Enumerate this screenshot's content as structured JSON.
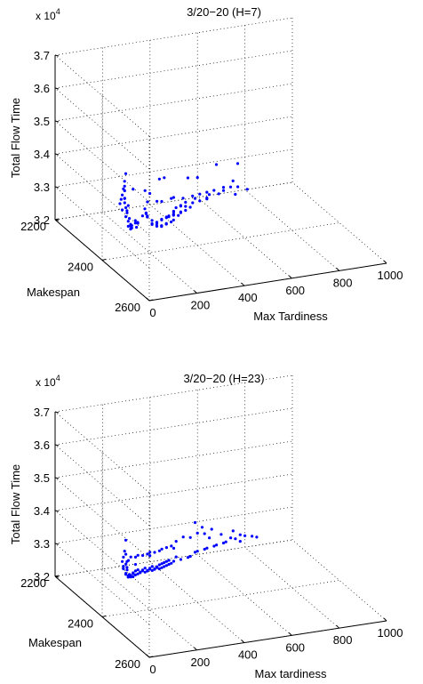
{
  "chart_data": [
    {
      "type": "scatter3d",
      "title": "3/20−20 (H=7)",
      "exponent_label": "x 10",
      "exponent_power": "4",
      "xlabel": "Max Tardiness",
      "ylabel": "Makespan",
      "zlabel": "Total Flow Time",
      "xlim": [
        0,
        1000
      ],
      "ylim": [
        2200,
        2600
      ],
      "zlim": [
        32000,
        37000
      ],
      "x_ticks": [
        "0",
        "200",
        "400",
        "600",
        "800",
        "1000"
      ],
      "y_ticks": [
        "2200",
        "2400",
        "2600"
      ],
      "z_ticks": [
        "3.2",
        "3.3",
        "3.4",
        "3.5",
        "3.6",
        "3.7"
      ],
      "grid": true,
      "marker_color": "#0000ff",
      "points": [
        {
          "x": 20,
          "y": 2480,
          "z": 35100
        },
        {
          "x": 25,
          "y": 2470,
          "z": 34800
        },
        {
          "x": 30,
          "y": 2460,
          "z": 34500
        },
        {
          "x": 35,
          "y": 2450,
          "z": 34250
        },
        {
          "x": 40,
          "y": 2440,
          "z": 34050
        },
        {
          "x": 45,
          "y": 2430,
          "z": 33850
        },
        {
          "x": 55,
          "y": 2430,
          "z": 33650
        },
        {
          "x": 60,
          "y": 2440,
          "z": 33500
        },
        {
          "x": 70,
          "y": 2440,
          "z": 33350
        },
        {
          "x": 75,
          "y": 2450,
          "z": 33200
        },
        {
          "x": 80,
          "y": 2440,
          "z": 33100
        },
        {
          "x": 90,
          "y": 2420,
          "z": 33050
        },
        {
          "x": 25,
          "y": 2470,
          "z": 34650
        },
        {
          "x": 35,
          "y": 2460,
          "z": 34200
        },
        {
          "x": 45,
          "y": 2450,
          "z": 34000
        },
        {
          "x": 55,
          "y": 2450,
          "z": 33750
        },
        {
          "x": 65,
          "y": 2450,
          "z": 33500
        },
        {
          "x": 85,
          "y": 2440,
          "z": 33200
        },
        {
          "x": 100,
          "y": 2420,
          "z": 33100
        },
        {
          "x": 110,
          "y": 2410,
          "z": 33000
        },
        {
          "x": 120,
          "y": 2400,
          "z": 32900
        },
        {
          "x": 130,
          "y": 2390,
          "z": 32850
        },
        {
          "x": 95,
          "y": 2450,
          "z": 33200
        },
        {
          "x": 40,
          "y": 2455,
          "z": 34400
        },
        {
          "x": 50,
          "y": 2445,
          "z": 34100
        },
        {
          "x": 60,
          "y": 2450,
          "z": 33900
        },
        {
          "x": 70,
          "y": 2430,
          "z": 33700
        },
        {
          "x": 80,
          "y": 2425,
          "z": 33500
        },
        {
          "x": 105,
          "y": 2435,
          "z": 33300
        },
        {
          "x": 115,
          "y": 2425,
          "z": 33150
        },
        {
          "x": 140,
          "y": 2410,
          "z": 33050
        },
        {
          "x": 150,
          "y": 2400,
          "z": 32950
        },
        {
          "x": 160,
          "y": 2420,
          "z": 33500
        },
        {
          "x": 175,
          "y": 2410,
          "z": 33300
        },
        {
          "x": 185,
          "y": 2400,
          "z": 33200
        },
        {
          "x": 200,
          "y": 2390,
          "z": 33050
        },
        {
          "x": 210,
          "y": 2380,
          "z": 32950
        },
        {
          "x": 220,
          "y": 2390,
          "z": 32800
        },
        {
          "x": 230,
          "y": 2380,
          "z": 32700
        },
        {
          "x": 240,
          "y": 2370,
          "z": 32750
        },
        {
          "x": 250,
          "y": 2380,
          "z": 32650
        },
        {
          "x": 260,
          "y": 2370,
          "z": 32550
        },
        {
          "x": 270,
          "y": 2360,
          "z": 32600
        },
        {
          "x": 280,
          "y": 2350,
          "z": 32500
        },
        {
          "x": 290,
          "y": 2360,
          "z": 32450
        },
        {
          "x": 300,
          "y": 2350,
          "z": 32400
        },
        {
          "x": 310,
          "y": 2340,
          "z": 32500
        },
        {
          "x": 320,
          "y": 2330,
          "z": 32450
        },
        {
          "x": 330,
          "y": 2340,
          "z": 32350
        },
        {
          "x": 340,
          "y": 2330,
          "z": 32300
        },
        {
          "x": 350,
          "y": 2320,
          "z": 32400
        },
        {
          "x": 360,
          "y": 2310,
          "z": 32350
        },
        {
          "x": 370,
          "y": 2320,
          "z": 32250
        },
        {
          "x": 380,
          "y": 2300,
          "z": 32300
        },
        {
          "x": 390,
          "y": 2290,
          "z": 32200
        },
        {
          "x": 400,
          "y": 2300,
          "z": 32150
        },
        {
          "x": 410,
          "y": 2290,
          "z": 32250
        },
        {
          "x": 420,
          "y": 2280,
          "z": 32150
        },
        {
          "x": 430,
          "y": 2270,
          "z": 32200
        },
        {
          "x": 440,
          "y": 2260,
          "z": 32100
        },
        {
          "x": 450,
          "y": 2270,
          "z": 32050
        },
        {
          "x": 460,
          "y": 2250,
          "z": 32150
        },
        {
          "x": 470,
          "y": 2260,
          "z": 32050
        },
        {
          "x": 480,
          "y": 2250,
          "z": 32000
        },
        {
          "x": 490,
          "y": 2240,
          "z": 32100
        },
        {
          "x": 500,
          "y": 2230,
          "z": 32050
        },
        {
          "x": 510,
          "y": 2240,
          "z": 31950
        },
        {
          "x": 520,
          "y": 2230,
          "z": 32000
        },
        {
          "x": 530,
          "y": 2220,
          "z": 32050
        },
        {
          "x": 540,
          "y": 2230,
          "z": 31950
        },
        {
          "x": 560,
          "y": 2220,
          "z": 32000
        },
        {
          "x": 580,
          "y": 2210,
          "z": 32050
        },
        {
          "x": 600,
          "y": 2210,
          "z": 31950
        },
        {
          "x": 620,
          "y": 2220,
          "z": 32050
        },
        {
          "x": 640,
          "y": 2210,
          "z": 32100
        },
        {
          "x": 670,
          "y": 2220,
          "z": 32150
        },
        {
          "x": 700,
          "y": 2210,
          "z": 32250
        },
        {
          "x": 720,
          "y": 2220,
          "z": 32300
        },
        {
          "x": 740,
          "y": 2210,
          "z": 32400
        },
        {
          "x": 330,
          "y": 2300,
          "z": 32800
        },
        {
          "x": 360,
          "y": 2290,
          "z": 32700
        },
        {
          "x": 420,
          "y": 2270,
          "z": 32600
        },
        {
          "x": 470,
          "y": 2270,
          "z": 32550
        },
        {
          "x": 520,
          "y": 2260,
          "z": 32500
        },
        {
          "x": 560,
          "y": 2250,
          "z": 32450
        },
        {
          "x": 600,
          "y": 2240,
          "z": 32400
        },
        {
          "x": 640,
          "y": 2230,
          "z": 32350
        },
        {
          "x": 680,
          "y": 2230,
          "z": 32300
        },
        {
          "x": 720,
          "y": 2240,
          "z": 32200
        },
        {
          "x": 390,
          "y": 2250,
          "z": 33100
        },
        {
          "x": 510,
          "y": 2250,
          "z": 33000
        },
        {
          "x": 660,
          "y": 2220,
          "z": 33050
        },
        {
          "x": 740,
          "y": 2230,
          "z": 33050
        },
        {
          "x": 250,
          "y": 2330,
          "z": 33400
        },
        {
          "x": 760,
          "y": 2210,
          "z": 32200
        },
        {
          "x": 790,
          "y": 2220,
          "z": 32150
        },
        {
          "x": 150,
          "y": 2420,
          "z": 33300
        },
        {
          "x": 310,
          "y": 2290,
          "z": 33000
        },
        {
          "x": 460,
          "y": 2240,
          "z": 32400
        },
        {
          "x": 590,
          "y": 2250,
          "z": 32300
        },
        {
          "x": 200,
          "y": 2330,
          "z": 33500
        },
        {
          "x": 280,
          "y": 2310,
          "z": 32900
        },
        {
          "x": 440,
          "y": 2220,
          "z": 32900
        },
        {
          "x": 600,
          "y": 2200,
          "z": 32600
        }
      ]
    },
    {
      "type": "scatter3d",
      "title": "3/20−20 (H=23)",
      "exponent_label": "x 10",
      "exponent_power": "4",
      "xlabel": "Max tardiness",
      "ylabel": "Makespan",
      "zlabel": "Total Flow Time",
      "xlim": [
        0,
        1000
      ],
      "ylim": [
        2200,
        2600
      ],
      "zlim": [
        32000,
        37000
      ],
      "x_ticks": [
        "0",
        "200",
        "400",
        "600",
        "800",
        "1000"
      ],
      "y_ticks": [
        "2200",
        "2400",
        "2600"
      ],
      "z_ticks": [
        "3.2",
        "3.3",
        "3.4",
        "3.5",
        "3.6",
        "3.7"
      ],
      "grid": true,
      "marker_color": "#0000ff",
      "points": [
        {
          "x": 20,
          "y": 2480,
          "z": 34800
        },
        {
          "x": 25,
          "y": 2470,
          "z": 34400
        },
        {
          "x": 30,
          "y": 2460,
          "z": 34150
        },
        {
          "x": 35,
          "y": 2450,
          "z": 33950
        },
        {
          "x": 40,
          "y": 2450,
          "z": 33800
        },
        {
          "x": 50,
          "y": 2440,
          "z": 33650
        },
        {
          "x": 60,
          "y": 2440,
          "z": 33500
        },
        {
          "x": 70,
          "y": 2430,
          "z": 33400
        },
        {
          "x": 80,
          "y": 2430,
          "z": 33300
        },
        {
          "x": 90,
          "y": 2420,
          "z": 33250
        },
        {
          "x": 100,
          "y": 2410,
          "z": 33200
        },
        {
          "x": 30,
          "y": 2470,
          "z": 34300
        },
        {
          "x": 45,
          "y": 2460,
          "z": 34000
        },
        {
          "x": 55,
          "y": 2450,
          "z": 33750
        },
        {
          "x": 65,
          "y": 2440,
          "z": 33600
        },
        {
          "x": 75,
          "y": 2440,
          "z": 33450
        },
        {
          "x": 85,
          "y": 2430,
          "z": 33350
        },
        {
          "x": 95,
          "y": 2420,
          "z": 33300
        },
        {
          "x": 110,
          "y": 2410,
          "z": 33150
        },
        {
          "x": 120,
          "y": 2400,
          "z": 33100
        },
        {
          "x": 130,
          "y": 2390,
          "z": 33050
        },
        {
          "x": 140,
          "y": 2390,
          "z": 33000
        },
        {
          "x": 150,
          "y": 2380,
          "z": 33050
        },
        {
          "x": 160,
          "y": 2370,
          "z": 32950
        },
        {
          "x": 170,
          "y": 2370,
          "z": 32900
        },
        {
          "x": 180,
          "y": 2360,
          "z": 32950
        },
        {
          "x": 190,
          "y": 2360,
          "z": 32850
        },
        {
          "x": 200,
          "y": 2350,
          "z": 32900
        },
        {
          "x": 210,
          "y": 2350,
          "z": 32800
        },
        {
          "x": 220,
          "y": 2340,
          "z": 32750
        },
        {
          "x": 230,
          "y": 2340,
          "z": 32800
        },
        {
          "x": 240,
          "y": 2330,
          "z": 32700
        },
        {
          "x": 250,
          "y": 2330,
          "z": 32650
        },
        {
          "x": 260,
          "y": 2320,
          "z": 32700
        },
        {
          "x": 270,
          "y": 2320,
          "z": 32600
        },
        {
          "x": 280,
          "y": 2310,
          "z": 32550
        },
        {
          "x": 290,
          "y": 2310,
          "z": 32600
        },
        {
          "x": 300,
          "y": 2300,
          "z": 32500
        },
        {
          "x": 310,
          "y": 2300,
          "z": 32450
        },
        {
          "x": 320,
          "y": 2290,
          "z": 32500
        },
        {
          "x": 330,
          "y": 2290,
          "z": 32400
        },
        {
          "x": 340,
          "y": 2280,
          "z": 32350
        },
        {
          "x": 350,
          "y": 2280,
          "z": 32400
        },
        {
          "x": 360,
          "y": 2270,
          "z": 32300
        },
        {
          "x": 370,
          "y": 2270,
          "z": 32250
        },
        {
          "x": 380,
          "y": 2260,
          "z": 32300
        },
        {
          "x": 390,
          "y": 2260,
          "z": 32200
        },
        {
          "x": 400,
          "y": 2250,
          "z": 32250
        },
        {
          "x": 410,
          "y": 2250,
          "z": 32150
        },
        {
          "x": 420,
          "y": 2240,
          "z": 32200
        },
        {
          "x": 430,
          "y": 2240,
          "z": 32100
        },
        {
          "x": 440,
          "y": 2230,
          "z": 32150
        },
        {
          "x": 450,
          "y": 2230,
          "z": 32050
        },
        {
          "x": 460,
          "y": 2220,
          "z": 32100
        },
        {
          "x": 470,
          "y": 2220,
          "z": 32000
        },
        {
          "x": 480,
          "y": 2220,
          "z": 32050
        },
        {
          "x": 500,
          "y": 2210,
          "z": 32100
        },
        {
          "x": 520,
          "y": 2210,
          "z": 32000
        },
        {
          "x": 540,
          "y": 2220,
          "z": 32100
        },
        {
          "x": 560,
          "y": 2210,
          "z": 32050
        },
        {
          "x": 580,
          "y": 2210,
          "z": 32150
        },
        {
          "x": 600,
          "y": 2200,
          "z": 32100
        },
        {
          "x": 620,
          "y": 2210,
          "z": 32200
        },
        {
          "x": 640,
          "y": 2200,
          "z": 32150
        },
        {
          "x": 660,
          "y": 2210,
          "z": 32250
        },
        {
          "x": 680,
          "y": 2200,
          "z": 32200
        },
        {
          "x": 700,
          "y": 2210,
          "z": 32300
        },
        {
          "x": 720,
          "y": 2200,
          "z": 32250
        },
        {
          "x": 740,
          "y": 2200,
          "z": 32350
        },
        {
          "x": 760,
          "y": 2200,
          "z": 32300
        },
        {
          "x": 780,
          "y": 2200,
          "z": 32400
        },
        {
          "x": 800,
          "y": 2200,
          "z": 32350
        },
        {
          "x": 830,
          "y": 2200,
          "z": 32300
        },
        {
          "x": 850,
          "y": 2200,
          "z": 32250
        },
        {
          "x": 150,
          "y": 2360,
          "z": 33300
        },
        {
          "x": 180,
          "y": 2340,
          "z": 33250
        },
        {
          "x": 210,
          "y": 2330,
          "z": 33150
        },
        {
          "x": 240,
          "y": 2310,
          "z": 33050
        },
        {
          "x": 270,
          "y": 2300,
          "z": 32950
        },
        {
          "x": 300,
          "y": 2290,
          "z": 32900
        },
        {
          "x": 330,
          "y": 2270,
          "z": 32800
        },
        {
          "x": 360,
          "y": 2260,
          "z": 32700
        },
        {
          "x": 390,
          "y": 2250,
          "z": 32650
        },
        {
          "x": 420,
          "y": 2230,
          "z": 32550
        },
        {
          "x": 450,
          "y": 2220,
          "z": 32500
        },
        {
          "x": 480,
          "y": 2210,
          "z": 32450
        },
        {
          "x": 510,
          "y": 2200,
          "z": 32500
        },
        {
          "x": 540,
          "y": 2200,
          "z": 32600
        },
        {
          "x": 570,
          "y": 2200,
          "z": 32550
        },
        {
          "x": 600,
          "y": 2200,
          "z": 32650
        },
        {
          "x": 630,
          "y": 2200,
          "z": 32600
        },
        {
          "x": 660,
          "y": 2200,
          "z": 32700
        },
        {
          "x": 560,
          "y": 2230,
          "z": 33200
        },
        {
          "x": 600,
          "y": 2220,
          "z": 32950
        },
        {
          "x": 700,
          "y": 2200,
          "z": 32500
        },
        {
          "x": 750,
          "y": 2200,
          "z": 32550
        },
        {
          "x": 120,
          "y": 2380,
          "z": 33350
        },
        {
          "x": 200,
          "y": 2340,
          "z": 33000
        },
        {
          "x": 350,
          "y": 2250,
          "z": 32550
        },
        {
          "x": 500,
          "y": 2200,
          "z": 32300
        },
        {
          "x": 650,
          "y": 2200,
          "z": 32450
        },
        {
          "x": 780,
          "y": 2200,
          "z": 32200
        }
      ]
    }
  ]
}
